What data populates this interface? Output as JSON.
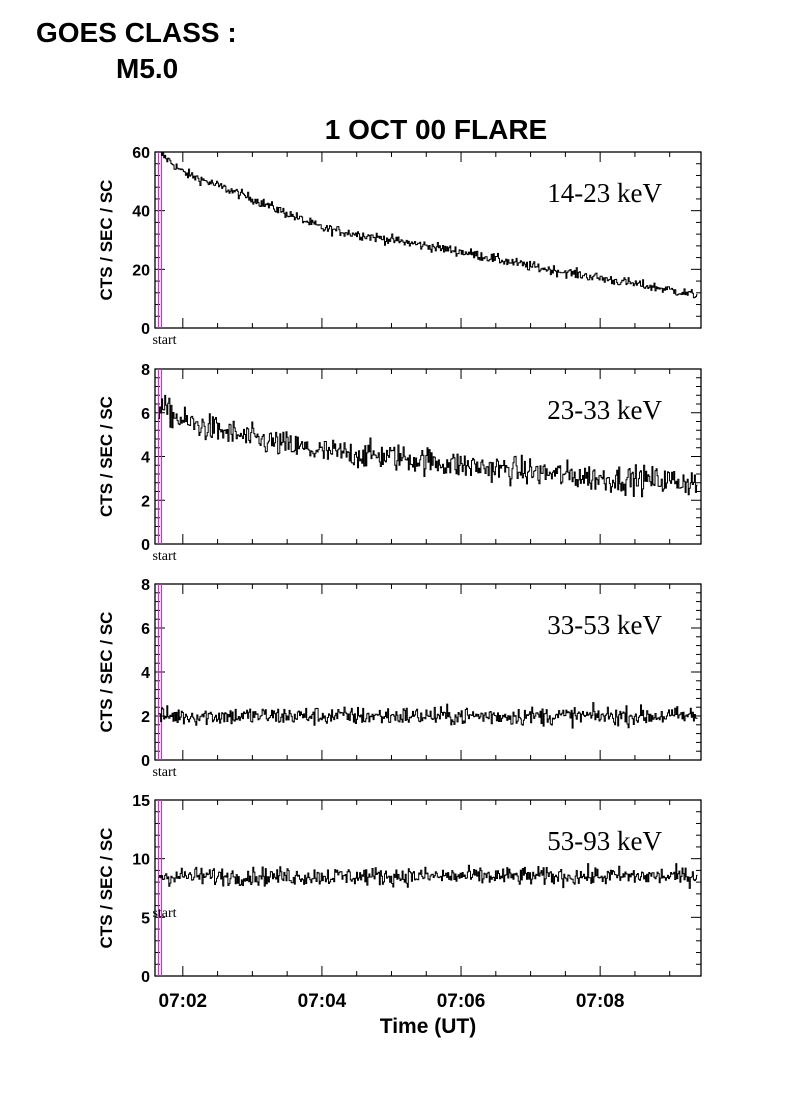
{
  "goes": {
    "label": "GOES CLASS :",
    "value": "M5.0"
  },
  "chart_data": {
    "type": "line",
    "title": "1 OCT 00 FLARE",
    "xlabel": "Time (UT)",
    "ylabel": "CTS / SEC / SC",
    "x_ticks": [
      "07:02",
      "07:04",
      "07:06",
      "07:08"
    ],
    "x_tick_minutes": [
      2,
      4,
      6,
      8
    ],
    "xlim_minutes": [
      1.6,
      9.45
    ],
    "x_start_time": "07:01:40",
    "start_marker_label": "start",
    "start_marker_minutes": 1.65,
    "colors": {
      "series": "#000000",
      "start_marker": "#cc33cc"
    },
    "panels": [
      {
        "band": "14-23 keV",
        "ylim": [
          0,
          60
        ],
        "yticks": [
          0,
          20,
          40,
          60
        ],
        "series": {
          "x_minutes": [
            1.65,
            2,
            3,
            4,
            5,
            6,
            7,
            8,
            9,
            9.4
          ],
          "values": [
            60,
            53,
            44,
            34,
            30,
            26,
            21,
            17,
            13,
            11
          ],
          "noise": 1.2
        }
      },
      {
        "band": "23-33 keV",
        "ylim": [
          0,
          8
        ],
        "yticks": [
          0,
          2,
          4,
          6,
          8
        ],
        "series": {
          "x_minutes": [
            1.65,
            2,
            3,
            4,
            5,
            6,
            7,
            8,
            9,
            9.4
          ],
          "values": [
            6.3,
            5.6,
            4.8,
            4.2,
            4.0,
            3.6,
            3.3,
            3.0,
            2.9,
            2.8
          ],
          "noise": 0.45
        }
      },
      {
        "band": "33-53 keV",
        "ylim": [
          0,
          8
        ],
        "yticks": [
          0,
          2,
          4,
          6,
          8
        ],
        "series": {
          "x_minutes": [
            1.65,
            9.4
          ],
          "values": [
            2.0,
            2.0
          ],
          "noise": 0.3
        }
      },
      {
        "band": "53-93 keV",
        "ylim": [
          0,
          15
        ],
        "yticks": [
          0,
          5,
          10,
          15
        ],
        "series": {
          "x_minutes": [
            1.65,
            9.4
          ],
          "values": [
            8.5,
            8.5
          ],
          "noise": 0.55
        }
      }
    ]
  }
}
